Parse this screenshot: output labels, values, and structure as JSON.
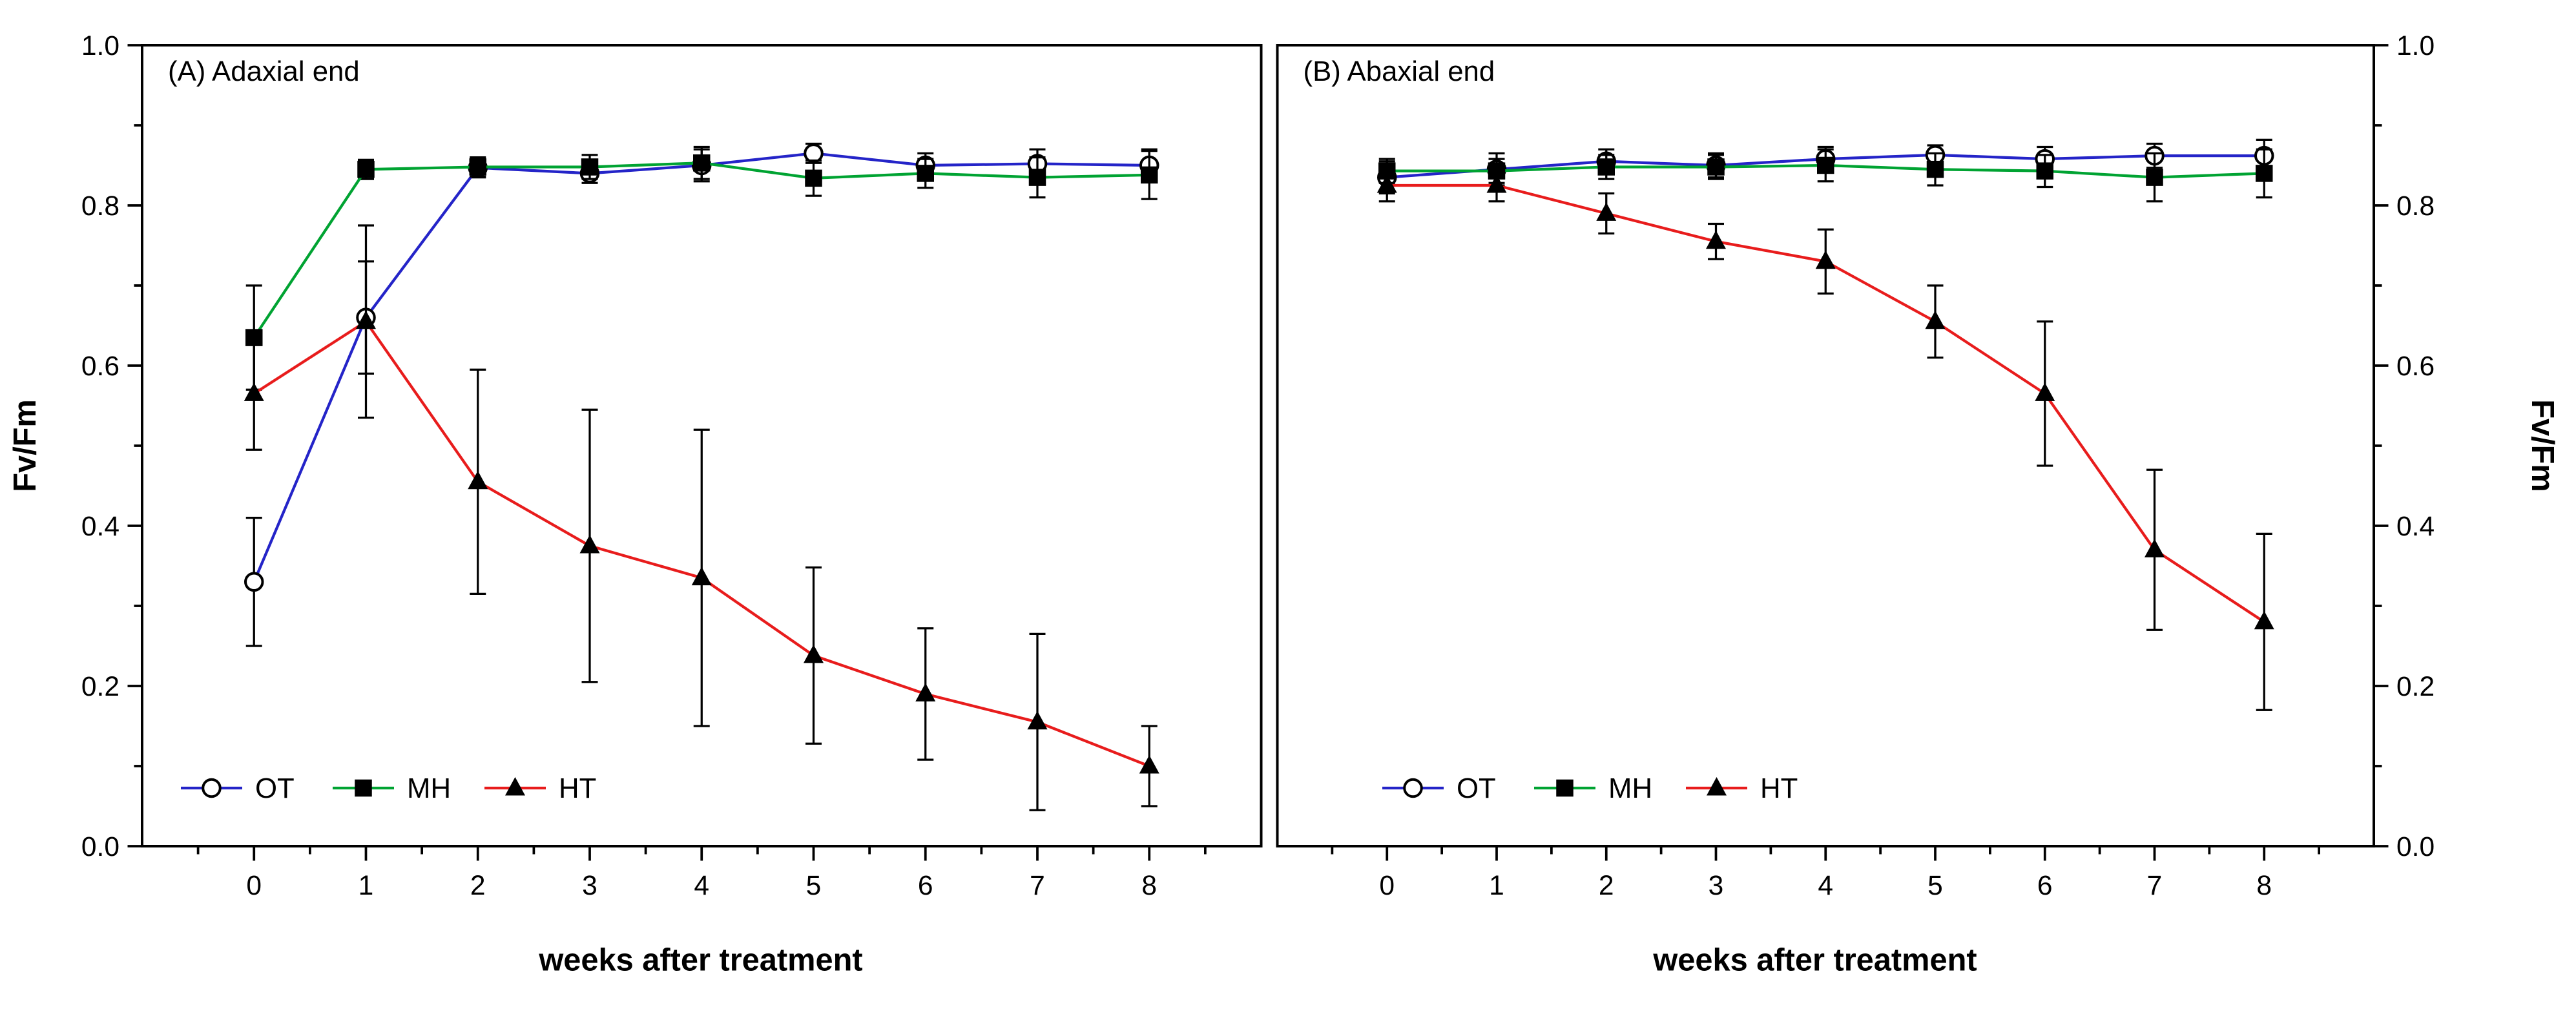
{
  "page": {
    "background": "#ffffff"
  },
  "chart_data": [
    {
      "type": "line",
      "panel_label": "A",
      "title": "(A) Adaxial end",
      "xlabel": "weeks after treatment",
      "ylabel": "Fv/Fm",
      "x": [
        0,
        1,
        2,
        3,
        4,
        5,
        6,
        7,
        8
      ],
      "xlim": [
        -1,
        9
      ],
      "ylim": [
        0,
        1
      ],
      "yticks": [
        0.0,
        0.2,
        0.4,
        0.6,
        0.8,
        1.0
      ],
      "ytick_side": "left",
      "grid": false,
      "legend_position": "bottom-left-inside",
      "error_bar_color": "#000000",
      "series": [
        {
          "name": "OT",
          "color": "#2424c8",
          "marker": "open-circle",
          "marker_color": "#000000",
          "values": [
            0.33,
            0.66,
            0.847,
            0.84,
            0.85,
            0.865,
            0.85,
            0.852,
            0.85
          ],
          "errors": [
            0.08,
            0.07,
            0.012,
            0.012,
            0.02,
            0.012,
            0.015,
            0.018,
            0.02
          ]
        },
        {
          "name": "MH",
          "color": "#00a332",
          "marker": "filled-square",
          "marker_color": "#000000",
          "values": [
            0.635,
            0.845,
            0.848,
            0.848,
            0.853,
            0.834,
            0.84,
            0.835,
            0.838
          ],
          "errors": [
            0.065,
            0.012,
            0.012,
            0.015,
            0.02,
            0.022,
            0.018,
            0.025,
            0.03
          ]
        },
        {
          "name": "HT",
          "color": "#e81c1c",
          "marker": "filled-triangle",
          "marker_color": "#000000",
          "values": [
            0.565,
            0.655,
            0.455,
            0.375,
            0.335,
            0.238,
            0.19,
            0.155,
            0.1
          ],
          "errors": [
            0.07,
            0.12,
            0.14,
            0.17,
            0.185,
            0.11,
            0.082,
            0.11,
            0.05
          ]
        }
      ]
    },
    {
      "type": "line",
      "panel_label": "B",
      "title": "(B) Abaxial end",
      "xlabel": "weeks after treatment",
      "ylabel": "Fv/Fm",
      "x": [
        0,
        1,
        2,
        3,
        4,
        5,
        6,
        7,
        8
      ],
      "xlim": [
        -1,
        9
      ],
      "ylim": [
        0,
        1
      ],
      "yticks": [
        0.0,
        0.2,
        0.4,
        0.6,
        0.8,
        1.0
      ],
      "ytick_side": "right",
      "grid": false,
      "legend_position": "bottom-left-inside",
      "error_bar_color": "#000000",
      "series": [
        {
          "name": "OT",
          "color": "#2424c8",
          "marker": "open-circle",
          "marker_color": "#000000",
          "values": [
            0.835,
            0.845,
            0.855,
            0.85,
            0.858,
            0.863,
            0.858,
            0.862,
            0.862
          ],
          "errors": [
            0.02,
            0.02,
            0.015,
            0.015,
            0.015,
            0.012,
            0.015,
            0.015,
            0.02
          ]
        },
        {
          "name": "MH",
          "color": "#00a332",
          "marker": "filled-square",
          "marker_color": "#000000",
          "values": [
            0.843,
            0.843,
            0.848,
            0.848,
            0.85,
            0.845,
            0.843,
            0.835,
            0.84
          ],
          "errors": [
            0.015,
            0.015,
            0.015,
            0.015,
            0.02,
            0.02,
            0.02,
            0.03,
            0.03
          ]
        },
        {
          "name": "HT",
          "color": "#e81c1c",
          "marker": "filled-triangle",
          "marker_color": "#000000",
          "values": [
            0.825,
            0.825,
            0.79,
            0.755,
            0.73,
            0.655,
            0.565,
            0.37,
            0.28
          ],
          "errors": [
            0.02,
            0.02,
            0.025,
            0.022,
            0.04,
            0.045,
            0.09,
            0.1,
            0.11
          ]
        }
      ]
    }
  ]
}
